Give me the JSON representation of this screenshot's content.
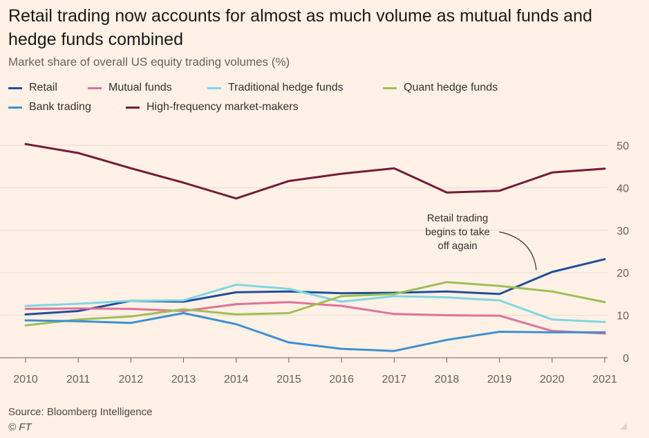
{
  "title": "Retail trading now accounts for almost as much volume as mutual funds and hedge funds combined",
  "subtitle": "Market share of overall US equity trading volumes (%)",
  "source": "Source: Bloomberg Intelligence",
  "copyright": "© FT",
  "chart_data": {
    "type": "line",
    "title": "Retail trading now accounts for almost as much volume as mutual funds and hedge funds combined",
    "subtitle": "Market share of overall US equity trading volumes (%)",
    "x": [
      2010,
      2011,
      2012,
      2013,
      2014,
      2015,
      2016,
      2017,
      2018,
      2019,
      2020,
      2021
    ],
    "ylim": [
      0,
      50
    ],
    "yticks": [
      0,
      10,
      20,
      30,
      40,
      50
    ],
    "y_axis_side": "right",
    "grid": true,
    "legend_position": "top-left",
    "series": [
      {
        "name": "Retail",
        "color": "#1f4e9a",
        "values": [
          10.2,
          11.0,
          13.4,
          13.2,
          15.4,
          15.6,
          15.2,
          15.3,
          15.6,
          15.0,
          20.2,
          23.2
        ]
      },
      {
        "name": "Mutual funds",
        "color": "#e0709b",
        "values": [
          11.5,
          11.6,
          11.5,
          11.0,
          12.6,
          13.1,
          12.2,
          10.3,
          10.0,
          9.9,
          6.3,
          5.7
        ]
      },
      {
        "name": "Traditional hedge funds",
        "color": "#7fd6e3",
        "values": [
          12.2,
          12.7,
          13.4,
          13.5,
          17.2,
          16.2,
          13.2,
          14.5,
          14.2,
          13.5,
          9.0,
          8.4
        ]
      },
      {
        "name": "Quant hedge funds",
        "color": "#9ebf55",
        "values": [
          7.6,
          9.0,
          9.7,
          11.4,
          10.2,
          10.5,
          14.5,
          15.0,
          17.8,
          16.9,
          15.6,
          13.1
        ]
      },
      {
        "name": "Bank trading",
        "color": "#3d8fd0",
        "values": [
          8.8,
          8.6,
          8.2,
          10.5,
          7.9,
          3.6,
          2.1,
          1.6,
          4.2,
          6.1,
          6.0,
          6.0
        ]
      },
      {
        "name": "High-frequency market-makers",
        "color": "#751936",
        "values": [
          50.3,
          48.2,
          44.6,
          41.2,
          37.5,
          41.6,
          43.3,
          44.6,
          38.9,
          39.3,
          43.6,
          44.5
        ]
      }
    ],
    "annotations": [
      {
        "text_lines": [
          "Retail trading",
          "begins to take",
          "off again"
        ],
        "x": 2019.7,
        "y": 20.3
      }
    ]
  }
}
